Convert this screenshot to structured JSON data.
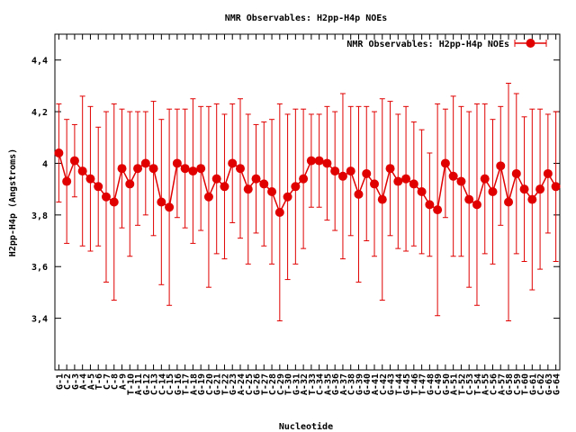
{
  "chart_data": {
    "type": "line",
    "title": "NMR Observables: H2pp-H4p NOEs",
    "xlabel": "Nucleotide",
    "ylabel": "H2pp-H4p (Angstroms)",
    "ylim": [
      3.2,
      4.5
    ],
    "yticks": [
      3.4,
      3.6,
      3.8,
      4,
      4.2,
      4.4
    ],
    "yticklabels": [
      "3,4",
      "3,6",
      "3,8",
      "4",
      "4,2",
      "4,4"
    ],
    "grid": false,
    "legend": "top-right",
    "color": "#e00000",
    "x": [
      1,
      2,
      3,
      4,
      5,
      6,
      7,
      8,
      9,
      10,
      11,
      12,
      13,
      14,
      15,
      16,
      17,
      18,
      19,
      20,
      21,
      22,
      23,
      24,
      25,
      26,
      27,
      28,
      29,
      30,
      31,
      32,
      33,
      34,
      35,
      36,
      37,
      38,
      39,
      40,
      41,
      42,
      43,
      44,
      45,
      46,
      47,
      48,
      49,
      50,
      51,
      52,
      53,
      54,
      55,
      56,
      57,
      58,
      59,
      60,
      61,
      62,
      63,
      64
    ],
    "categories": [
      "G-1",
      "C-2",
      "G-3",
      "A-4",
      "A-5",
      "T-6",
      "C-7",
      "C-8",
      "A-9",
      "T-10",
      "A-11",
      "G-12",
      "C-13",
      "C-14",
      "C-15",
      "G-16",
      "T-17",
      "A-18",
      "G-19",
      "C-20",
      "G-21",
      "T-22",
      "G-23",
      "A-24",
      "C-25",
      "G-26",
      "T-27",
      "C-28",
      "C-29",
      "T-30",
      "G-31",
      "A-32",
      "T-33",
      "C-34",
      "A-35",
      "G-36",
      "A-37",
      "C-38",
      "G-39",
      "G-40",
      "A-41",
      "C-42",
      "G-43",
      "T-44",
      "G-45",
      "T-46",
      "T-47",
      "G-48",
      "C-49",
      "G-50",
      "A-51",
      "T-52",
      "C-53",
      "T-54",
      "A-55",
      "C-56",
      "A-57",
      "G-58",
      "C-59",
      "T-60",
      "G-61",
      "C-62",
      "G-63",
      "G-64"
    ],
    "series": [
      {
        "name": "NMR Observables: H2pp-H4p NOEs",
        "values": [
          4.04,
          3.93,
          4.01,
          3.97,
          3.94,
          3.91,
          3.87,
          3.85,
          3.98,
          3.92,
          3.98,
          4.0,
          3.98,
          3.85,
          3.83,
          4.0,
          3.98,
          3.97,
          3.98,
          3.87,
          3.94,
          3.91,
          4.0,
          3.98,
          3.9,
          3.94,
          3.92,
          3.89,
          3.81,
          3.87,
          3.91,
          3.94,
          4.01,
          4.01,
          4.0,
          3.97,
          3.95,
          3.97,
          3.88,
          3.96,
          3.92,
          3.86,
          3.98,
          3.93,
          3.94,
          3.92,
          3.89,
          3.84,
          3.82,
          4.0,
          3.95,
          3.93,
          3.86,
          3.84,
          3.94,
          3.89,
          3.99,
          3.85,
          3.96,
          3.9,
          3.86,
          3.9,
          3.96,
          3.91
        ],
        "errors": [
          0.19,
          0.24,
          0.14,
          0.29,
          0.28,
          0.23,
          0.33,
          0.38,
          0.23,
          0.28,
          0.22,
          0.2,
          0.26,
          0.32,
          0.38,
          0.21,
          0.23,
          0.28,
          0.24,
          0.35,
          0.29,
          0.28,
          0.23,
          0.27,
          0.29,
          0.21,
          0.24,
          0.28,
          0.42,
          0.32,
          0.3,
          0.27,
          0.18,
          0.18,
          0.22,
          0.23,
          0.32,
          0.25,
          0.34,
          0.26,
          0.28,
          0.39,
          0.26,
          0.26,
          0.28,
          0.24,
          0.24,
          0.2,
          0.41,
          0.21,
          0.31,
          0.29,
          0.34,
          0.39,
          0.29,
          0.28,
          0.23,
          0.46,
          0.31,
          0.28,
          0.35,
          0.31,
          0.23,
          0.29
        ]
      }
    ]
  }
}
